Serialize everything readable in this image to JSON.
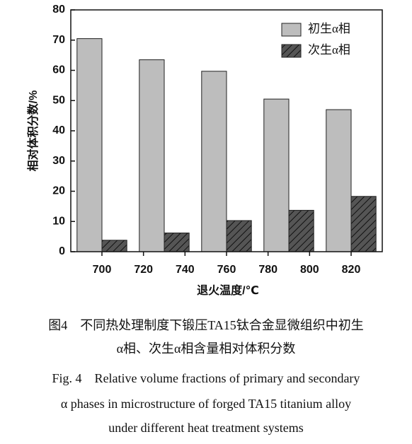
{
  "chart_data": {
    "type": "bar",
    "x": [
      700,
      730,
      760,
      790,
      820
    ],
    "series": [
      {
        "name": "初生α相",
        "color": "#bdbdbd",
        "values": [
          70.5,
          63.5,
          59.7,
          50.5,
          47
        ]
      },
      {
        "name": "次生α相",
        "color": "#555555",
        "hatch": true,
        "values": [
          3.8,
          6.2,
          10.3,
          13.7,
          18.3
        ]
      }
    ],
    "xlabel": "退火温度/℃",
    "ylabel": "相对体积分数/%",
    "xlim": [
      685,
      835
    ],
    "xticks": [
      700,
      720,
      740,
      760,
      780,
      800,
      820
    ],
    "ylim": [
      0,
      80
    ],
    "yticks": [
      0,
      10,
      20,
      30,
      40,
      50,
      60,
      70,
      80
    ],
    "legend": "upper right",
    "caption": [
      "图4　不同热处理制度下锻压TA15钛合金显微组织中初生",
      "α相、次生α相含量相对体积分数",
      "Fig. 4　Relative volume fractions of primary and secondary",
      "α phases in microstructure of forged TA15 titanium alloy",
      "under different heat treatment systems"
    ]
  }
}
